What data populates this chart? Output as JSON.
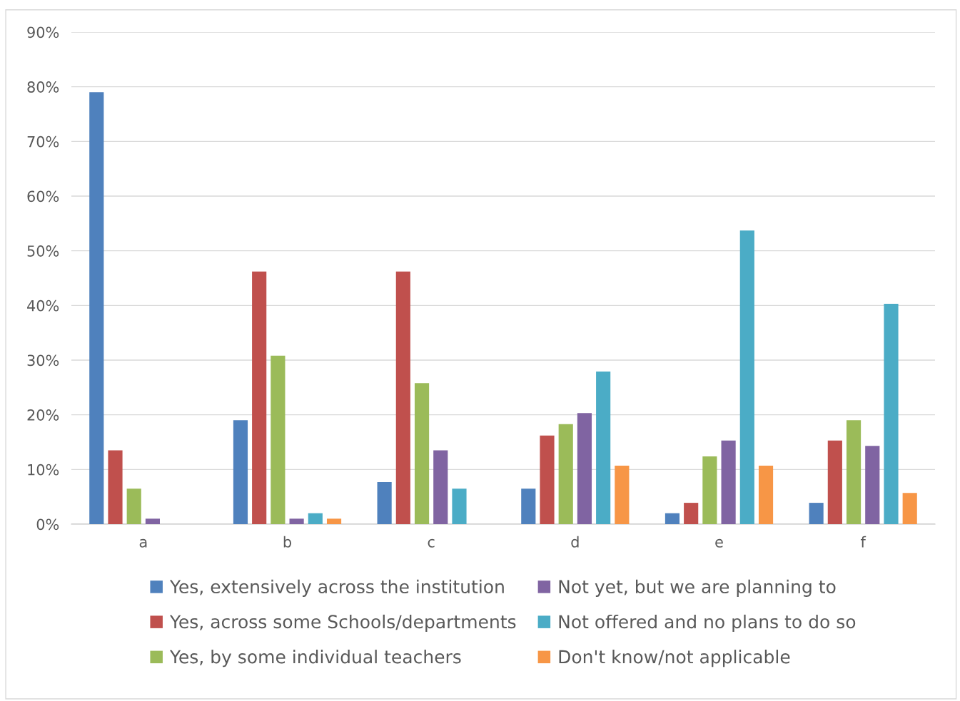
{
  "chart_data": {
    "type": "bar",
    "categories": [
      "a",
      "b",
      "c",
      "d",
      "e",
      "f"
    ],
    "series": [
      {
        "name": "Yes, extensively across the institution",
        "color": "#4f81bd",
        "values": [
          79,
          19,
          7.7,
          6.5,
          2,
          3.9
        ]
      },
      {
        "name": "Yes, across some Schools/departments",
        "color": "#c0504d",
        "values": [
          13.5,
          46.2,
          46.2,
          16.2,
          3.9,
          15.3
        ]
      },
      {
        "name": "Yes, by some individual teachers",
        "color": "#9bbb59",
        "values": [
          6.5,
          30.8,
          25.8,
          18.3,
          12.4,
          19
        ]
      },
      {
        "name": "Not yet, but we are planning to",
        "color": "#8064a2",
        "values": [
          1,
          1,
          13.5,
          20.3,
          15.3,
          14.3
        ]
      },
      {
        "name": "Not offered and no plans to do so",
        "color": "#4bacc6",
        "values": [
          0,
          2,
          6.5,
          27.9,
          53.7,
          40.3
        ]
      },
      {
        "name": "Don't know/not applicable",
        "color": "#f79646",
        "values": [
          0,
          1,
          0,
          10.7,
          10.7,
          5.7
        ]
      }
    ],
    "ylim": [
      0,
      90
    ],
    "yticks": [
      {
        "value": 0,
        "label": "0%"
      },
      {
        "value": 10,
        "label": "10%"
      },
      {
        "value": 20,
        "label": "20%"
      },
      {
        "value": 30,
        "label": "30%"
      },
      {
        "value": 40,
        "label": "40%"
      },
      {
        "value": 50,
        "label": "50%"
      },
      {
        "value": 60,
        "label": "60%"
      },
      {
        "value": 70,
        "label": "70%"
      },
      {
        "value": 80,
        "label": "80%"
      },
      {
        "value": 90,
        "label": "90%"
      }
    ],
    "grid": "y",
    "legend": "bottom"
  }
}
